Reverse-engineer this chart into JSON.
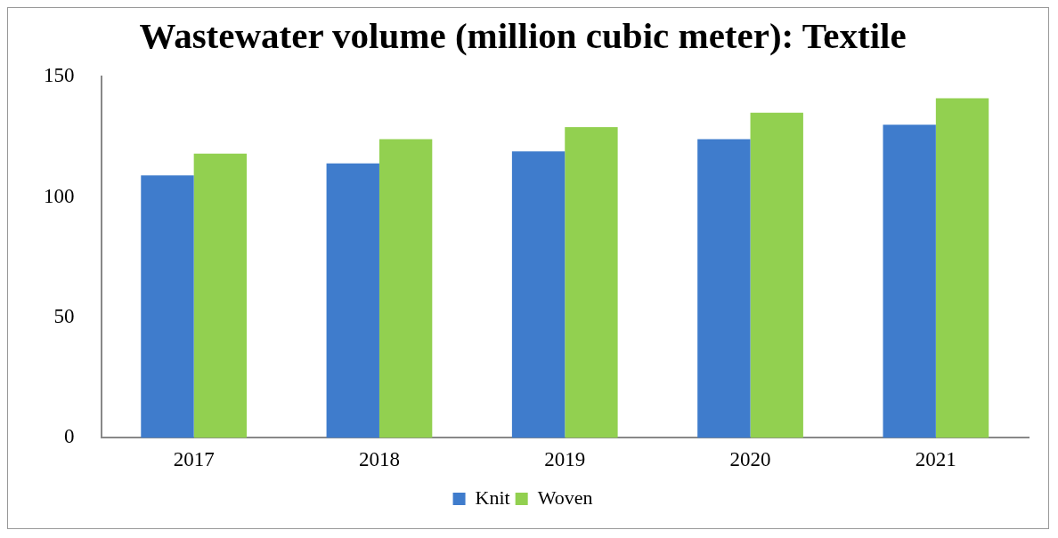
{
  "chart_data": {
    "type": "bar",
    "title": "Wastewater volume (million cubic meter): Textile",
    "categories": [
      "2017",
      "2018",
      "2019",
      "2020",
      "2021"
    ],
    "series": [
      {
        "name": "Knit",
        "color": "#3f7ccc",
        "values": [
          109,
          114,
          119,
          124,
          130
        ]
      },
      {
        "name": "Woven",
        "color": "#92d050",
        "values": [
          118,
          124,
          129,
          135,
          141
        ]
      }
    ],
    "ylim": [
      0,
      150
    ],
    "yticks": [
      0,
      50,
      100,
      150
    ],
    "grid": false,
    "legend": "bottom"
  }
}
